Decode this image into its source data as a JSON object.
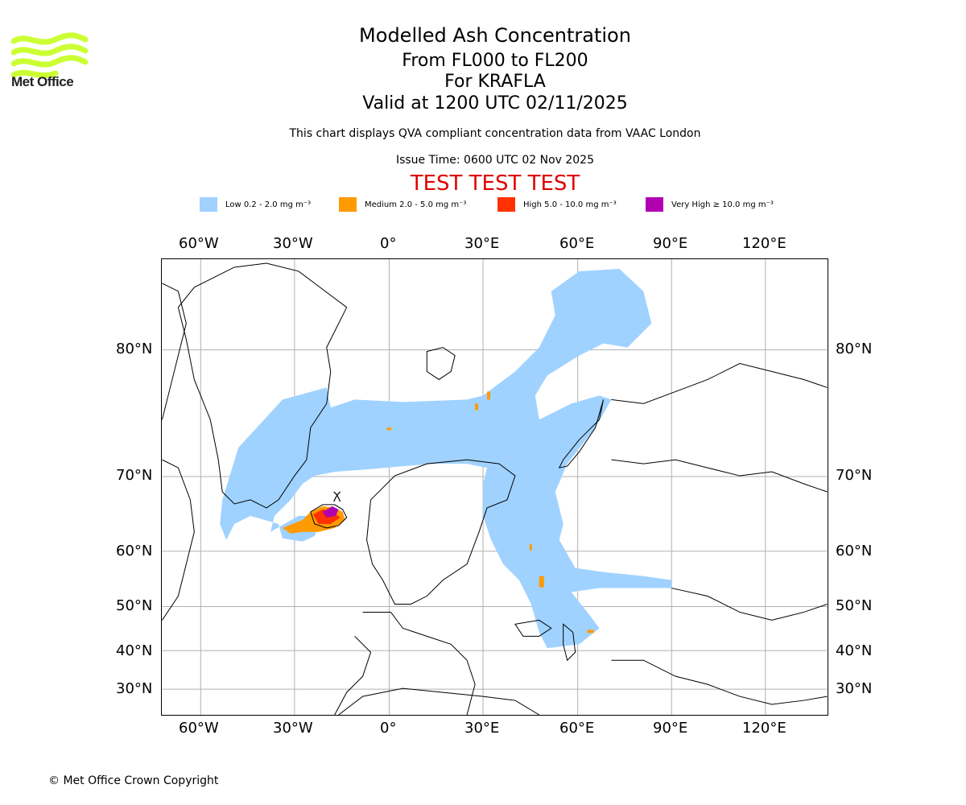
{
  "header": {
    "title": "Modelled Ash Concentration",
    "subtitle_levels": "From FL000 to FL200",
    "subtitle_volcano": "For KRAFLA",
    "subtitle_valid": "Valid at 1200 UTC 02/11/2025",
    "note": "This chart displays QVA compliant concentration data from VAAC London",
    "issue_time": "Issue Time: 0600 UTC 02 Nov 2025",
    "test_banner": "TEST TEST TEST",
    "test_color": "#e00000"
  },
  "logo": {
    "text": "Met Office",
    "icon": "met-office-waves-logo",
    "color": "#ccff33"
  },
  "legend": [
    {
      "label": "Low 0.2 - 2.0 mg m⁻³",
      "color": "#a0d2ff"
    },
    {
      "label": "Medium 2.0 - 5.0 mg m⁻³",
      "color": "#ff9a00"
    },
    {
      "label": "High 5.0 - 10.0 mg m⁻³",
      "color": "#ff3200"
    },
    {
      "label": "Very High ≥ 10.0 mg m⁻³",
      "color": "#b000b0"
    }
  ],
  "map": {
    "lon_labels": [
      "60°W",
      "30°W",
      "0°",
      "30°E",
      "60°E",
      "90°E",
      "120°E"
    ],
    "lat_labels": [
      "80°N",
      "70°N",
      "60°N",
      "50°N",
      "40°N",
      "30°N"
    ],
    "source_volcano": "KRAFLA"
  },
  "footer": {
    "copyright": "© Met Office Crown Copyright"
  }
}
